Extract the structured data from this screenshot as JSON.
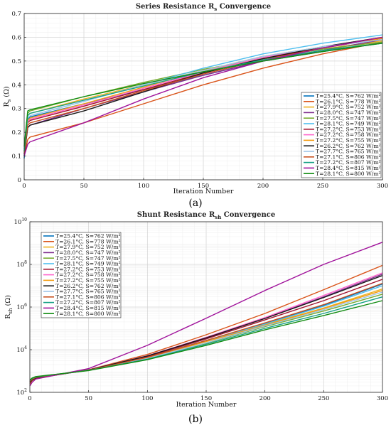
{
  "chart_data": [
    {
      "type": "line",
      "panel_caption": "(a)",
      "title": "Series  Resistance  R",
      "title_sub": "s",
      "title_tail": "  Convergence",
      "xlabel": "Iteration Number",
      "ylabel": "R",
      "ylabel_sub": "s",
      "ylabel_tail": " (Ω)",
      "xlim": [
        0,
        300
      ],
      "ylim": [
        0,
        0.7
      ],
      "yscale": "linear",
      "xticks": [
        0,
        50,
        100,
        150,
        200,
        250,
        300
      ],
      "yticks": [
        0,
        0.1,
        0.2,
        0.3,
        0.4,
        0.5,
        0.6,
        0.7
      ],
      "ytick_labels": [
        "0",
        "0.1",
        "0.2",
        "0.3",
        "0.4",
        "0.5",
        "0.6",
        "0.7"
      ],
      "grid": true,
      "legend_position": "right",
      "x": [
        0,
        3,
        5,
        50,
        100,
        150,
        200,
        250,
        300
      ],
      "series": [
        {
          "name": "T=25.4°C, S=762 W/m²",
          "color": "#0072BD",
          "values": [
            0.09,
            0.255,
            0.265,
            0.32,
            0.38,
            0.44,
            0.5,
            0.54,
            0.575
          ]
        },
        {
          "name": "T=26.1°C, S=778 W/m²",
          "color": "#D95319",
          "values": [
            0.1,
            0.17,
            0.18,
            0.24,
            0.32,
            0.4,
            0.47,
            0.53,
            0.58
          ]
        },
        {
          "name": "T=27.9°C, S=752 W/m²",
          "color": "#EDB120",
          "values": [
            0.12,
            0.27,
            0.28,
            0.34,
            0.4,
            0.46,
            0.51,
            0.55,
            0.585
          ]
        },
        {
          "name": "T=28.0°C, S=747 W/m²",
          "color": "#7E2F8E",
          "values": [
            0.11,
            0.22,
            0.23,
            0.3,
            0.37,
            0.44,
            0.5,
            0.545,
            0.59
          ]
        },
        {
          "name": "T=27.5°C, S=747 W/m²",
          "color": "#77AC30",
          "values": [
            0.13,
            0.28,
            0.29,
            0.35,
            0.41,
            0.465,
            0.51,
            0.55,
            0.58
          ]
        },
        {
          "name": "T=28.1°C, S=749 W/m²",
          "color": "#4DBEEE",
          "values": [
            0.1,
            0.26,
            0.27,
            0.33,
            0.4,
            0.47,
            0.53,
            0.575,
            0.61
          ]
        },
        {
          "name": "T=27.2°C, S=753 W/m²",
          "color": "#A2142F",
          "values": [
            0.11,
            0.24,
            0.25,
            0.31,
            0.38,
            0.45,
            0.51,
            0.555,
            0.595
          ]
        },
        {
          "name": "T=27.2°C, S=758 W/m²",
          "color": "#FF66CC",
          "values": [
            0.11,
            0.245,
            0.255,
            0.315,
            0.385,
            0.455,
            0.515,
            0.56,
            0.6
          ]
        },
        {
          "name": "T=27.2°C, S=755 W/m²",
          "color": "#F39C12",
          "values": [
            0.12,
            0.25,
            0.26,
            0.32,
            0.39,
            0.46,
            0.52,
            0.56,
            0.595
          ]
        },
        {
          "name": "T=26.2°C, S=762 W/m²",
          "color": "#1A1A1A",
          "values": [
            0.1,
            0.22,
            0.23,
            0.29,
            0.37,
            0.45,
            0.51,
            0.56,
            0.6
          ]
        },
        {
          "name": "T=27.7°C, S=765 W/m²",
          "color": "#9FC5E8",
          "values": [
            0.12,
            0.26,
            0.27,
            0.33,
            0.4,
            0.46,
            0.52,
            0.56,
            0.59
          ]
        },
        {
          "name": "T=27.1°C, S=806 W/m²",
          "color": "#C8501E",
          "values": [
            0.11,
            0.23,
            0.24,
            0.3,
            0.375,
            0.445,
            0.505,
            0.555,
            0.6
          ]
        },
        {
          "name": "T=27.2°C, S=807 W/m²",
          "color": "#16A085",
          "values": [
            0.12,
            0.27,
            0.28,
            0.335,
            0.395,
            0.455,
            0.505,
            0.545,
            0.575
          ]
        },
        {
          "name": "T=28.4°C, S=815 W/m²",
          "color": "#A0139B",
          "values": [
            0.1,
            0.15,
            0.16,
            0.24,
            0.34,
            0.43,
            0.5,
            0.555,
            0.6
          ]
        },
        {
          "name": "T=28.1°C, S=800 W/m²",
          "color": "#118C11",
          "values": [
            0.14,
            0.29,
            0.295,
            0.35,
            0.405,
            0.455,
            0.5,
            0.54,
            0.575
          ]
        }
      ]
    },
    {
      "type": "line",
      "panel_caption": "(b)",
      "title": "Shunt  Resistance  R",
      "title_sub": "sh",
      "title_tail": "  Convergence",
      "xlabel": "Iteration Number",
      "ylabel": "R",
      "ylabel_sub": "sh",
      "ylabel_tail": " (Ω)",
      "xlim": [
        0,
        300
      ],
      "ylim": [
        100,
        10000000000
      ],
      "yscale": "log",
      "xticks": [
        0,
        50,
        100,
        150,
        200,
        250,
        300
      ],
      "yticks": [
        100,
        10000,
        1000000,
        100000000,
        10000000000
      ],
      "ytick_labels": [
        "10",
        "10",
        "10",
        "10",
        "10"
      ],
      "ytick_exponents": [
        "2",
        "4",
        "6",
        "8",
        "10"
      ],
      "grid": true,
      "legend_position": "top-left",
      "x": [
        0,
        2,
        5,
        50,
        100,
        150,
        200,
        250,
        300
      ],
      "series": [
        {
          "name": "T=25.4°C, S=762 W/m²",
          "color": "#0072BD",
          "values": [
            300,
            380,
            470,
            1100,
            4500,
            27000,
            170000,
            1200000,
            12000000
          ]
        },
        {
          "name": "T=26.1°C, S=778 W/m²",
          "color": "#D95319",
          "values": [
            250,
            360,
            450,
            1150,
            6000,
            50000,
            500000,
            6500000,
            90000000
          ]
        },
        {
          "name": "T=27.9°C, S=752 W/m²",
          "color": "#EDB120",
          "values": [
            330,
            420,
            500,
            1100,
            4200,
            25000,
            150000,
            900000,
            7000000
          ]
        },
        {
          "name": "T=28.0°C, S=747 W/m²",
          "color": "#7E2F8E",
          "values": [
            300,
            390,
            480,
            1120,
            5000,
            35000,
            300000,
            3000000,
            35000000
          ]
        },
        {
          "name": "T=27.5°C, S=747 W/m²",
          "color": "#77AC30",
          "values": [
            350,
            440,
            520,
            1080,
            3800,
            20000,
            120000,
            650000,
            4000000
          ]
        },
        {
          "name": "T=28.1°C, S=749 W/m²",
          "color": "#4DBEEE",
          "values": [
            320,
            410,
            500,
            1100,
            4300,
            26000,
            160000,
            1100000,
            10000000
          ]
        },
        {
          "name": "T=27.2°C, S=753 W/m²",
          "color": "#A2142F",
          "values": [
            310,
            400,
            490,
            1110,
            4800,
            32000,
            250000,
            2000000,
            20000000
          ]
        },
        {
          "name": "T=27.2°C, S=758 W/m²",
          "color": "#FF66CC",
          "values": [
            300,
            400,
            480,
            1120,
            5200,
            38000,
            320000,
            3500000,
            40000000
          ]
        },
        {
          "name": "T=27.2°C, S=755 W/m²",
          "color": "#F39C12",
          "values": [
            330,
            420,
            500,
            1090,
            4100,
            24000,
            140000,
            850000,
            6000000
          ]
        },
        {
          "name": "T=26.2°C, S=762 W/m²",
          "color": "#1A1A1A",
          "values": [
            290,
            380,
            470,
            1120,
            5100,
            36000,
            290000,
            2800000,
            30000000
          ]
        },
        {
          "name": "T=27.7°C, S=765 W/m²",
          "color": "#9FC5E8",
          "values": [
            340,
            430,
            510,
            1090,
            3900,
            21000,
            130000,
            750000,
            5000000
          ]
        },
        {
          "name": "T=27.1°C, S=806 W/m²",
          "color": "#C8501E",
          "values": [
            320,
            410,
            500,
            1100,
            4400,
            27000,
            180000,
            1300000,
            13000000
          ]
        },
        {
          "name": "T=27.2°C, S=807 W/m²",
          "color": "#16A085",
          "values": [
            360,
            450,
            530,
            1070,
            3600,
            18000,
            100000,
            500000,
            3000000
          ]
        },
        {
          "name": "T=28.4°C, S=815 W/m²",
          "color": "#A0139B",
          "values": [
            200,
            300,
            420,
            1300,
            16000,
            300000,
            6000000,
            100000000,
            1100000000
          ]
        },
        {
          "name": "T=28.1°C, S=800 W/m²",
          "color": "#118C11",
          "values": [
            380,
            470,
            550,
            1050,
            3400,
            16000,
            85000,
            400000,
            2000000
          ]
        }
      ]
    }
  ]
}
